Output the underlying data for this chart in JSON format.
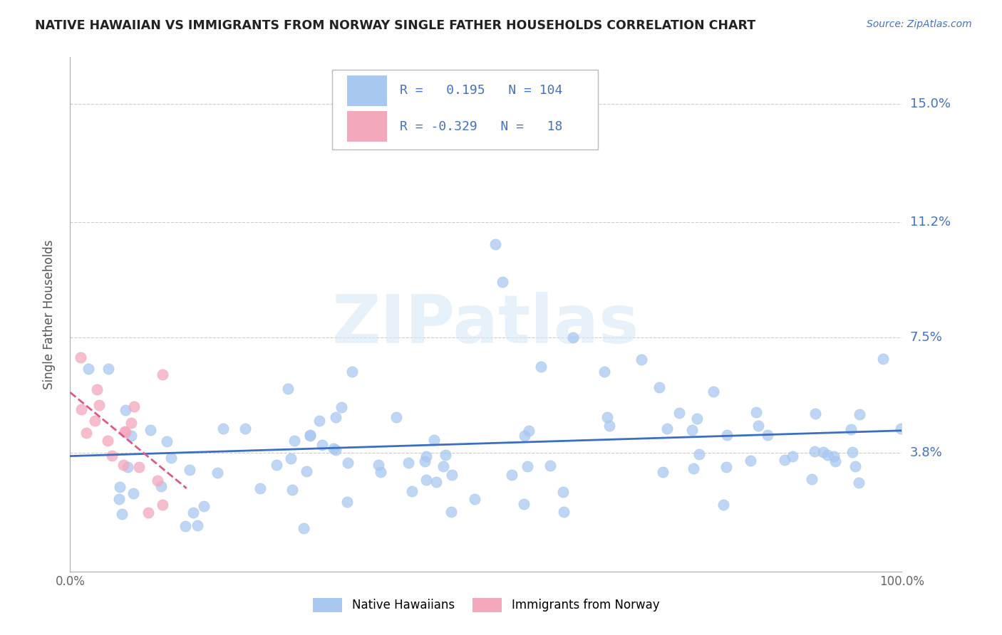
{
  "title": "NATIVE HAWAIIAN VS IMMIGRANTS FROM NORWAY SINGLE FATHER HOUSEHOLDS CORRELATION CHART",
  "source": "Source: ZipAtlas.com",
  "ylabel": "Single Father Households",
  "xlim": [
    0.0,
    1.0
  ],
  "ylim": [
    0.0,
    0.165
  ],
  "yticks": [
    0.038,
    0.075,
    0.112,
    0.15
  ],
  "ytick_labels": [
    "3.8%",
    "7.5%",
    "11.2%",
    "15.0%"
  ],
  "xtick_labels": [
    "0.0%",
    "100.0%"
  ],
  "xticks": [
    0.0,
    1.0
  ],
  "r_hawaiian": 0.195,
  "n_hawaiian": 104,
  "r_norway": -0.329,
  "n_norway": 18,
  "hawaiian_color": "#a8c8f0",
  "norway_color": "#f4a8bc",
  "line_hawaiian_color": "#3a6fc4",
  "line_norway_color": "#e05888",
  "watermark_text": "ZIPatlas",
  "legend_label1": "Native Hawaiians",
  "legend_label2": "Immigrants from Norway"
}
